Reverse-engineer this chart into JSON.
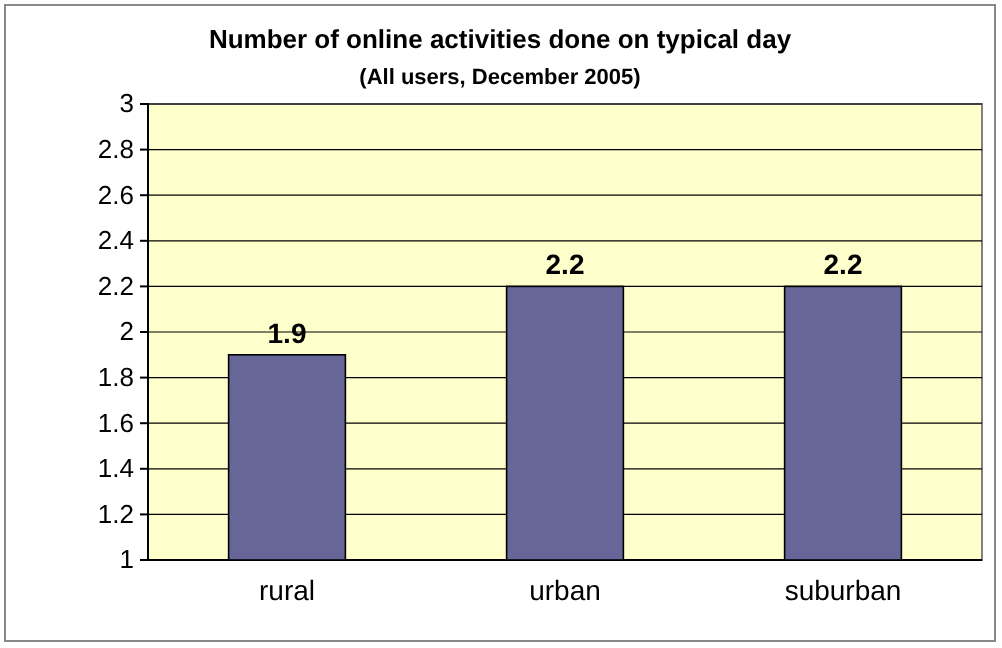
{
  "chart_data": {
    "type": "bar",
    "title": "Number of online activities done on typical day",
    "subtitle": "(All users, December 2005)",
    "categories": [
      "rural",
      "urban",
      "suburban"
    ],
    "values": [
      1.9,
      2.2,
      2.2
    ],
    "color": "#666699",
    "ylim": [
      1,
      3
    ],
    "yticks": [
      1,
      1.2,
      1.4,
      1.6,
      1.8,
      2,
      2.2,
      2.4,
      2.6,
      2.8,
      3
    ],
    "grid": "y",
    "data_labels": true
  }
}
